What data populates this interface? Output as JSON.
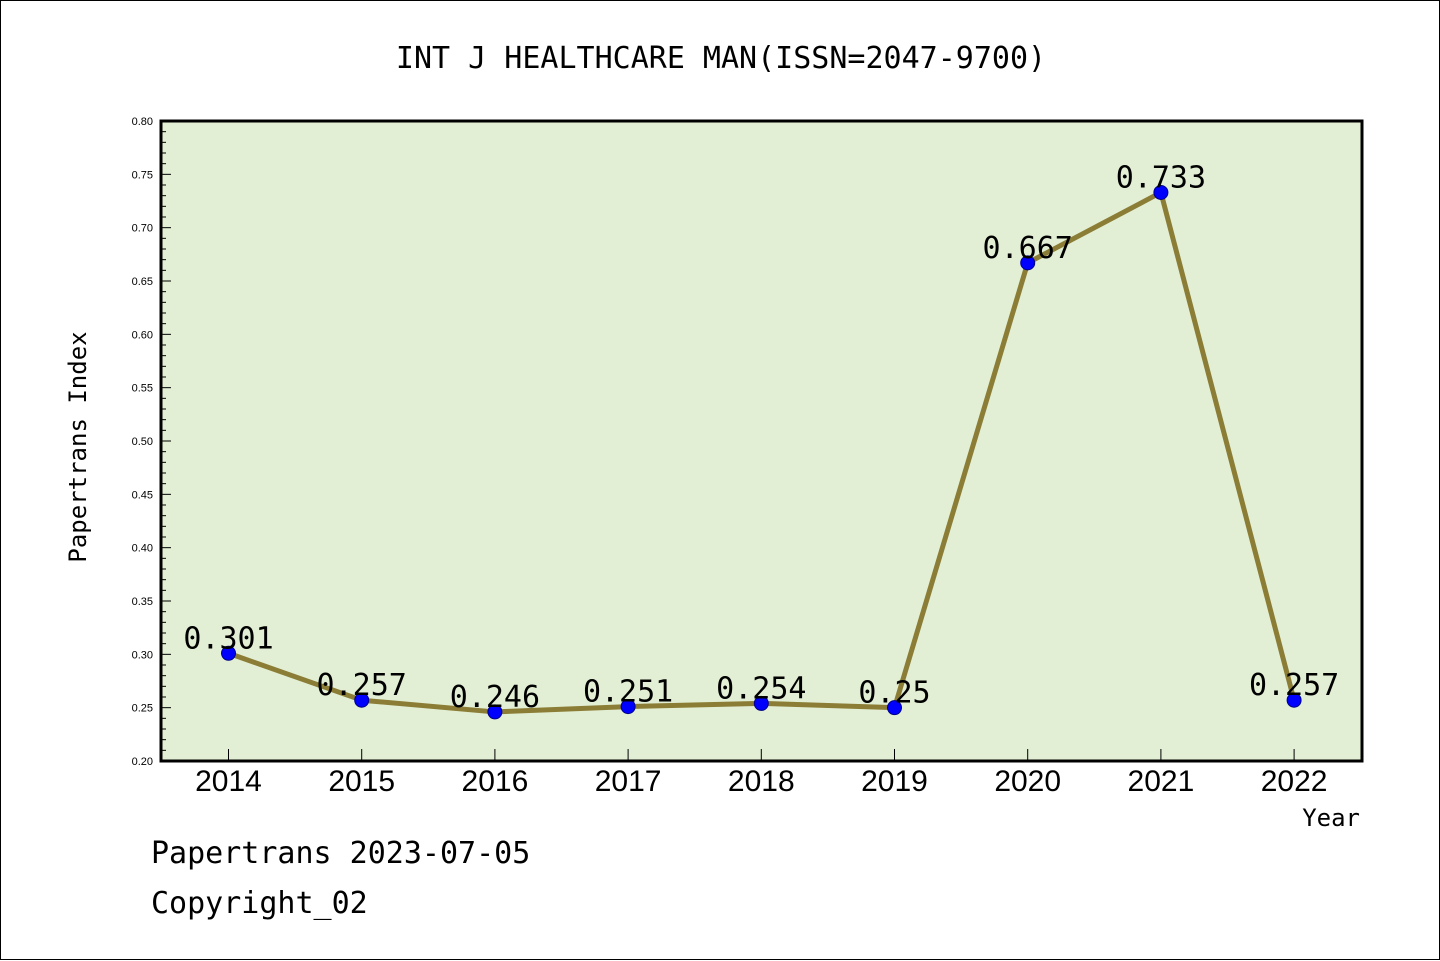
{
  "chart_data": {
    "type": "line",
    "title": "INT J HEALTHCARE MAN(ISSN=2047-9700)",
    "xlabel": "Year",
    "ylabel": "Papertrans Index",
    "categories": [
      "2014",
      "2015",
      "2016",
      "2017",
      "2018",
      "2019",
      "2020",
      "2021",
      "2022"
    ],
    "series": [
      {
        "values": [
          0.301,
          0.257,
          0.246,
          0.251,
          0.254,
          0.25,
          0.667,
          0.733,
          0.257
        ],
        "labels": [
          "0.301",
          "0.257",
          "0.246",
          "0.251",
          "0.254",
          "0.25",
          "0.667",
          "0.733",
          "0.257"
        ]
      }
    ],
    "ylim": [
      0.2,
      0.8
    ],
    "yticks": [
      "0.20",
      "0.25",
      "0.30",
      "0.35",
      "0.40",
      "0.45",
      "0.50",
      "0.55",
      "0.60",
      "0.65",
      "0.70",
      "0.75",
      "0.80"
    ],
    "grid": false,
    "legend": "none",
    "colors": {
      "plot_background": "#e2efd4",
      "line": "#8b7d35",
      "marker": "#0000ff",
      "axis": "#000000"
    }
  },
  "footer": {
    "line1": "Papertrans 2023-07-05",
    "line2": "Copyright_02"
  }
}
